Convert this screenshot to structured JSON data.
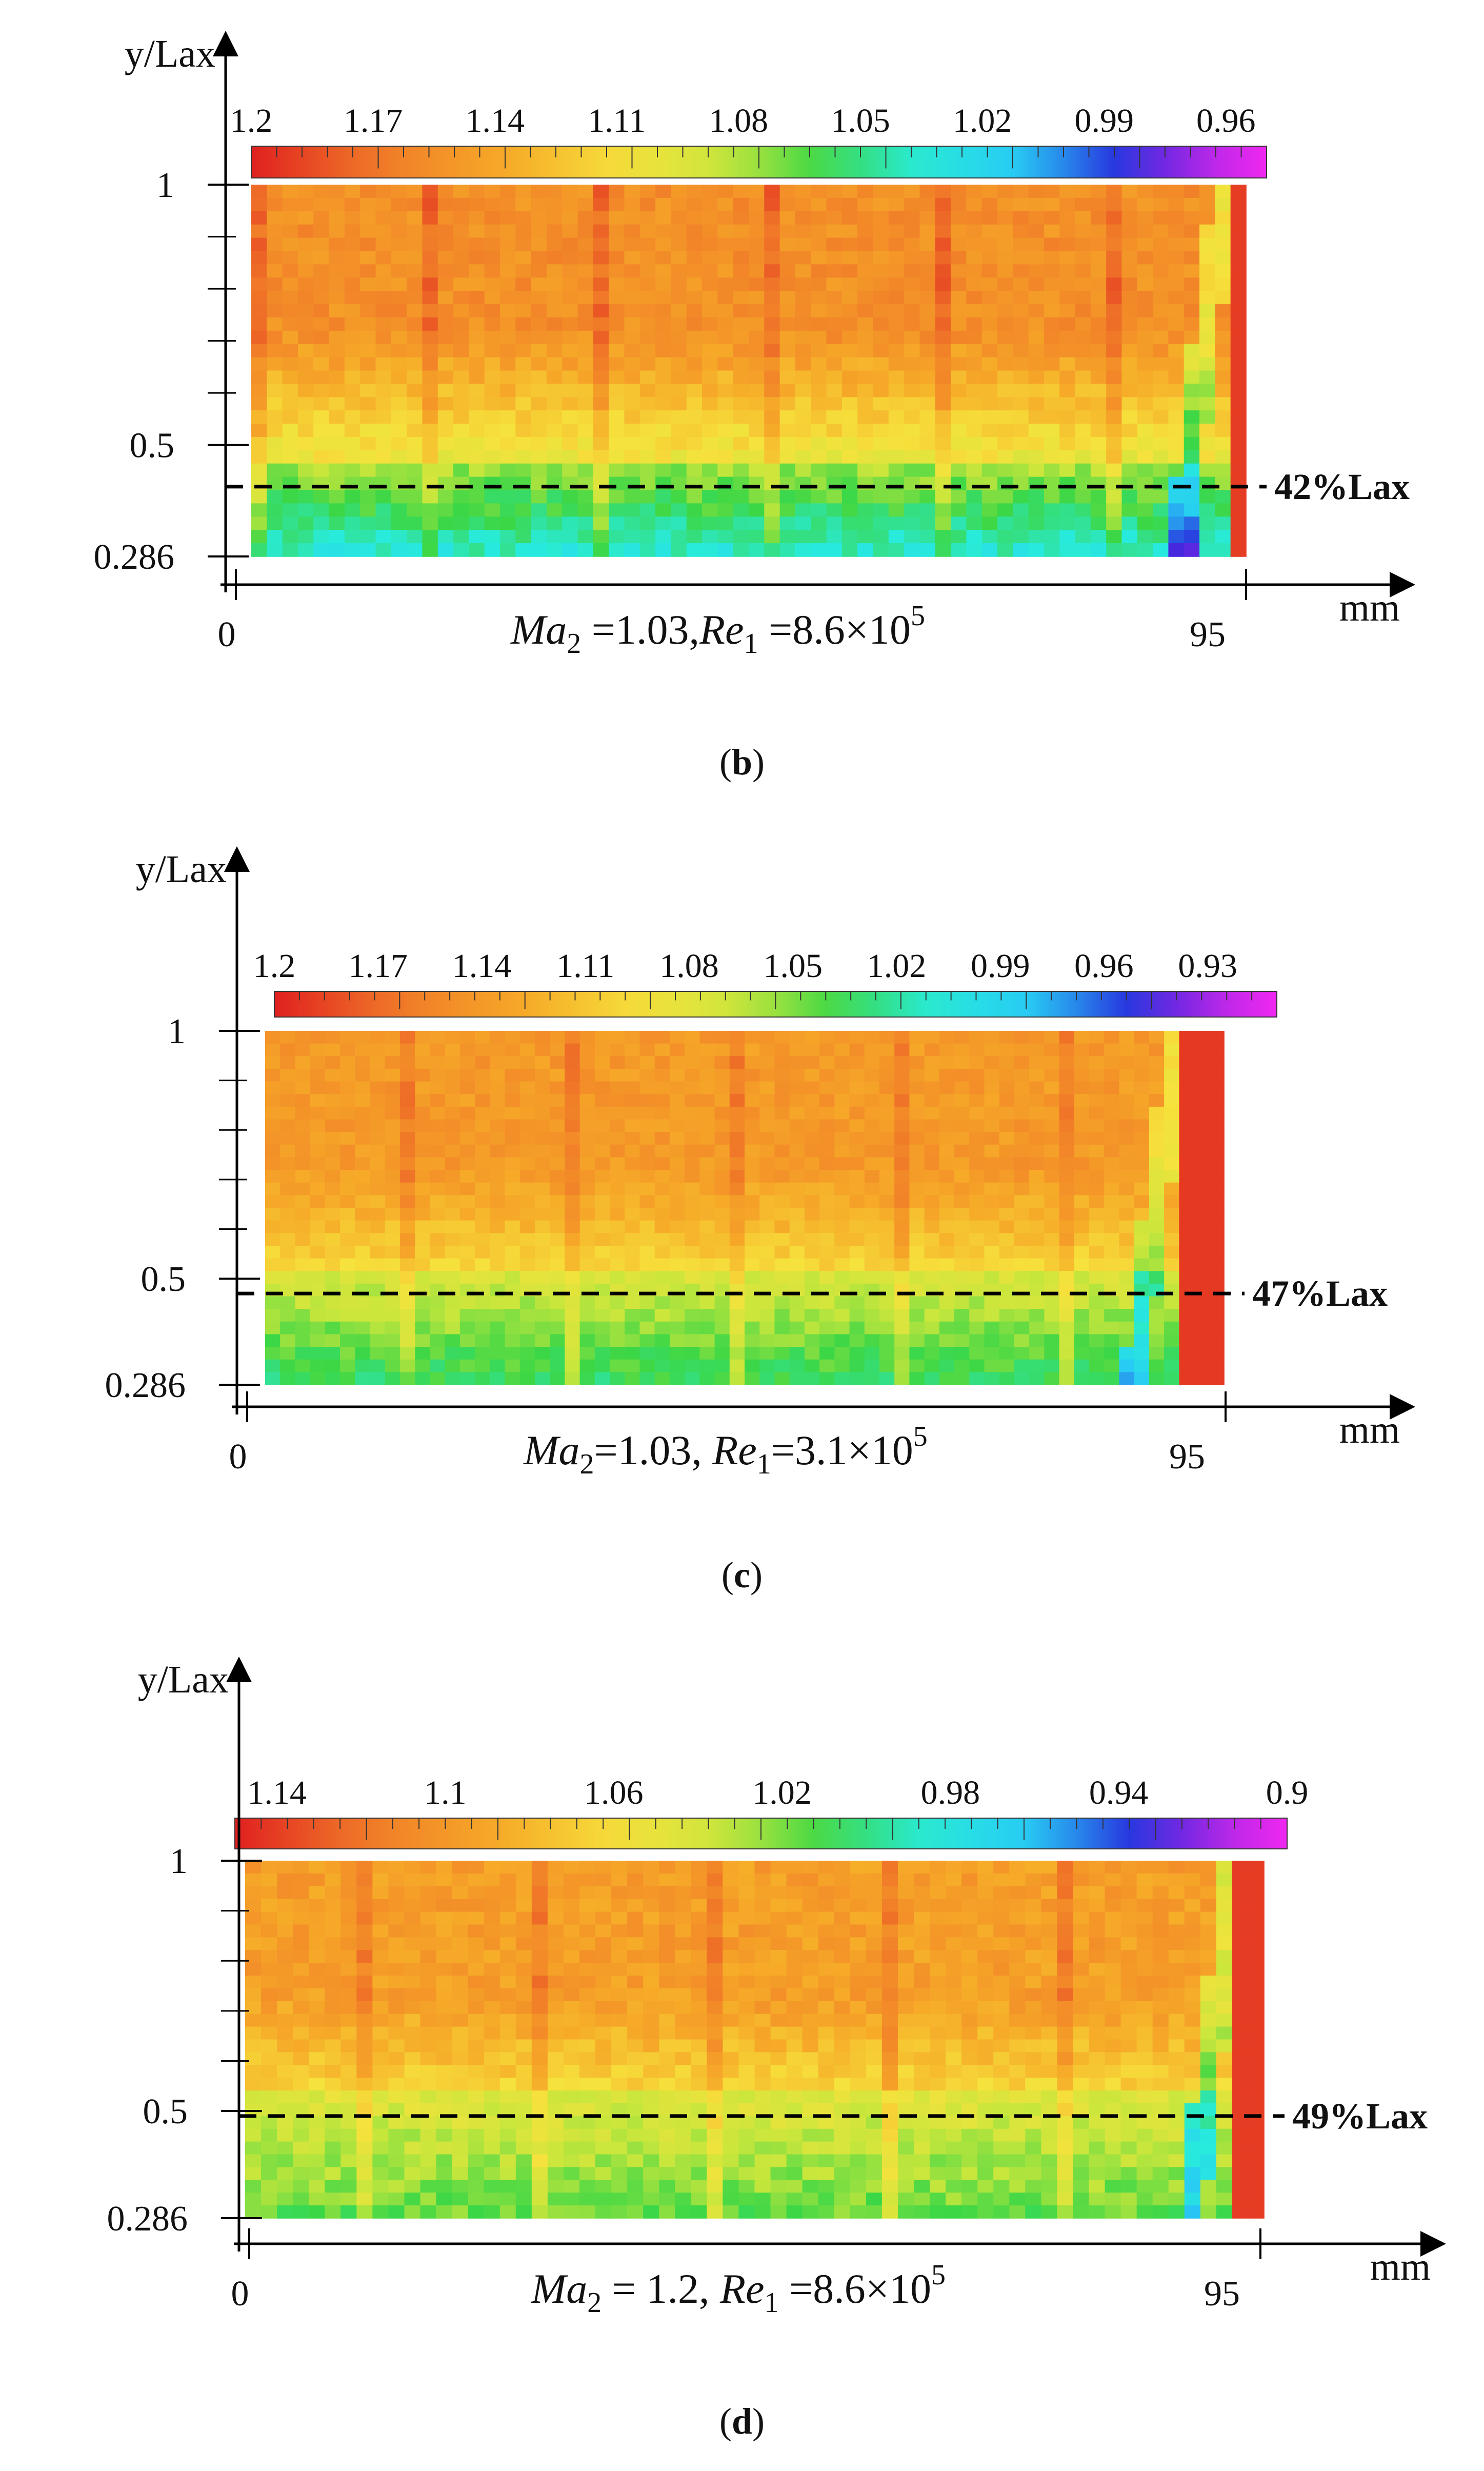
{
  "chart_data": [
    {
      "type": "heatmap",
      "panel_label": "b",
      "ylabel": "y/Lax",
      "xlabel": "mm",
      "x_range": [
        0,
        95
      ],
      "y_ticks": [
        "1",
        "0.5",
        "0.286"
      ],
      "x_ticks": [
        "0",
        "95"
      ],
      "colorbar_ticks": [
        "1.2",
        "1.17",
        "1.14",
        "1.11",
        "1.08",
        "1.05",
        "1.02",
        "0.99",
        "0.96"
      ],
      "colorbar_range": [
        1.2,
        0.95
      ],
      "annotation": "42%Lax",
      "annotation_y": 0.42,
      "condition": {
        "ma_sym": "Ma",
        "ma_sub": "2",
        "ma_val": " =1.03,",
        "re_sym": "Re",
        "re_sub": "1",
        "re_val": " =8.6×10",
        "re_exp": "5"
      },
      "field": {
        "top_band": 1.155,
        "low_band": 1.09,
        "bottom_band": 1.035,
        "transition_y": 0.42,
        "shock_x": 90.5
      }
    },
    {
      "type": "heatmap",
      "panel_label": "c",
      "ylabel": "y/Lax",
      "xlabel": "mm",
      "x_range": [
        0,
        95
      ],
      "y_ticks": [
        "1",
        "0.5",
        "0.286"
      ],
      "x_ticks": [
        "0",
        "95"
      ],
      "colorbar_ticks": [
        "1.2",
        "1.17",
        "1.14",
        "1.11",
        "1.08",
        "1.05",
        "1.02",
        "0.99",
        "0.96",
        "0.93"
      ],
      "colorbar_range": [
        1.2,
        0.91
      ],
      "annotation": "47%Lax",
      "annotation_y": 0.47,
      "condition": {
        "ma_sym": "Ma",
        "ma_sub": "2",
        "ma_val": "=1.03, ",
        "re_sym": "Re",
        "re_sub": "1",
        "re_val": "=3.1×10",
        "re_exp": "5"
      },
      "field": {
        "top_band": 1.14,
        "low_band": 1.09,
        "bottom_band": 1.03,
        "transition_y": 0.47,
        "shock_x": 88
      }
    },
    {
      "type": "heatmap",
      "panel_label": "d",
      "ylabel": "y/Lax",
      "xlabel": "mm",
      "x_range": [
        0,
        95
      ],
      "y_ticks": [
        "1",
        "0.5",
        "0.286"
      ],
      "x_ticks": [
        "0",
        "95"
      ],
      "colorbar_ticks": [
        "1.14",
        "1.1",
        "1.06",
        "1.02",
        "0.98",
        "0.94",
        "0.9"
      ],
      "colorbar_range": [
        1.15,
        0.9
      ],
      "annotation": "49%Lax",
      "annotation_y": 0.49,
      "condition": {
        "ma_sym": "Ma",
        "ma_sub": "2",
        "ma_val": " = 1.2, ",
        "re_sym": "Re",
        "re_sub": "1",
        "re_val": " =8.6×10",
        "re_exp": "5"
      },
      "field": {
        "top_band": 1.095,
        "low_band": 1.055,
        "bottom_band": 1.015,
        "transition_y": 0.49,
        "shock_x": 90
      }
    }
  ]
}
